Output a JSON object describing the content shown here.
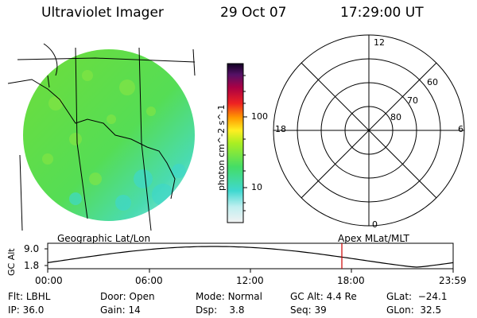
{
  "header": {
    "title": "Ultraviolet Imager",
    "date": "29 Oct 07",
    "time": "17:29:00 UT"
  },
  "colorbar": {
    "unit": "photon cm^-2 s^-1",
    "ticks": [
      "100",
      "10"
    ]
  },
  "polar": {
    "top": "12",
    "left": "18",
    "right": "6",
    "bottom": "0",
    "rings": [
      "60",
      "70",
      "80"
    ]
  },
  "panel_labels": {
    "left": "Geographic Lat/Lon",
    "right": "Apex MLat/MLT"
  },
  "altitude_plot": {
    "ylabel": "GC Alt",
    "yticks": [
      "9.0",
      "1.8"
    ],
    "xticks": [
      "00:00",
      "06:00",
      "12:00",
      "18:00",
      "23:59"
    ],
    "current_time_marker": "17:29"
  },
  "status": {
    "filter_label": "Flt:",
    "filter": "LBHL",
    "ip_label": "IP:",
    "ip": "36.0",
    "door_label": "Door:",
    "door": "Open",
    "gain_label": "Gain:",
    "gain": "14",
    "mode_label": "Mode:",
    "mode": "Normal",
    "dsp_label": "Dsp:",
    "dsp": "3.8",
    "gcalt_label": "GC Alt:",
    "gcalt": "4.4 Re",
    "seq_label": "Seq:",
    "seq": "39",
    "glat_label": "GLat:",
    "glat": "−24.1",
    "glon_label": "GLon:",
    "glon": "32.5"
  },
  "colors": {
    "disk_main": "#66dd44",
    "disk_low": "#44ddcc",
    "marker": "#cc0000"
  }
}
